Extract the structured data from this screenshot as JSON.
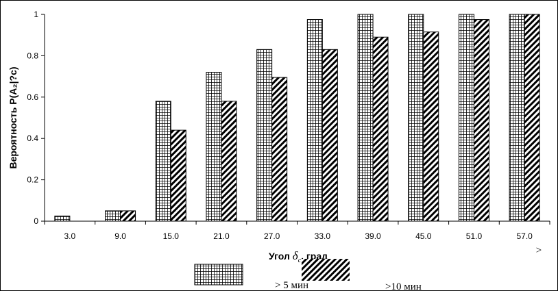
{
  "chart_data": {
    "type": "bar",
    "categories": [
      "3.0",
      "9.0",
      "15.0",
      "21.0",
      "27.0",
      "33.0",
      "39.0",
      "45.0",
      "51.0",
      "57.0"
    ],
    "series": [
      {
        "name": "> 5 мин",
        "pattern": "grid",
        "values": [
          0.025,
          0.05,
          0.58,
          0.72,
          0.83,
          0.975,
          1.0,
          1.0,
          1.0,
          1.0
        ]
      },
      {
        "name": ">10 мин",
        "pattern": "diagonal",
        "values": [
          0.0,
          0.05,
          0.44,
          0.58,
          0.695,
          0.83,
          0.89,
          0.915,
          0.975,
          1.0
        ]
      }
    ],
    "yticks": [
      "0",
      "0.2",
      "0.4",
      "0.6",
      "0.8",
      "1"
    ],
    "ytick_values": [
      0,
      0.2,
      0.4,
      0.6,
      0.8,
      1.0
    ],
    "ylim": [
      0,
      1
    ],
    "ylabel": "Вероятность P(A₂|?c)",
    "xlabel_prefix": "Угол ",
    "xlabel_symbol": "δ",
    "xlabel_subscript": "c",
    "xlabel_suffix": ", град",
    "stray_mark": ">",
    "grid": false,
    "legend": "bottom",
    "colors": {
      "fill": "#ffffff",
      "stroke": "#000000"
    }
  }
}
